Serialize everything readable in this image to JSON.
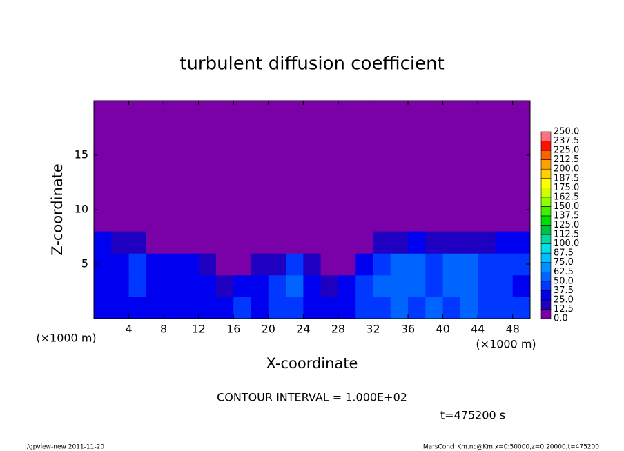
{
  "chart_data": {
    "type": "contour",
    "title": "turbulent diffusion coefficient",
    "xlabel": "X-coordinate",
    "ylabel": "Z-coordinate",
    "unit_label": "(×1000 m)",
    "xlim": [
      0,
      50
    ],
    "ylim": [
      0,
      20
    ],
    "xticks": [
      4,
      8,
      12,
      16,
      20,
      24,
      28,
      32,
      36,
      40,
      44,
      48
    ],
    "yticks": [
      5,
      10,
      15
    ],
    "x": [
      1,
      3,
      5,
      7,
      9,
      11,
      13,
      15,
      17,
      19,
      21,
      23,
      25,
      27,
      29,
      31,
      33,
      35,
      37,
      39,
      41,
      43,
      45,
      47,
      49
    ],
    "z": [
      1,
      3,
      5,
      7
    ],
    "values": [
      [
        35,
        30,
        35,
        30,
        30,
        28,
        30,
        35,
        40,
        35,
        38,
        40,
        35,
        30,
        35,
        40,
        45,
        50,
        45,
        50,
        45,
        50,
        40,
        45,
        40
      ],
      [
        30,
        35,
        40,
        35,
        30,
        35,
        25,
        20,
        25,
        35,
        40,
        50,
        35,
        20,
        25,
        45,
        50,
        55,
        50,
        45,
        50,
        55,
        45,
        40,
        35
      ],
      [
        30,
        35,
        40,
        35,
        35,
        30,
        20,
        10,
        10,
        15,
        20,
        40,
        15,
        10,
        10,
        30,
        45,
        50,
        55,
        45,
        50,
        50,
        40,
        45,
        40
      ],
      [
        25,
        20,
        15,
        10,
        10,
        5,
        0,
        0,
        0,
        0,
        0,
        5,
        0,
        0,
        0,
        0,
        15,
        20,
        25,
        20,
        15,
        20,
        20,
        25,
        25
      ]
    ],
    "levels": [
      {
        "value": 0,
        "label": "0.0"
      },
      {
        "value": 12.5,
        "label": "12.5"
      },
      {
        "value": 25,
        "label": "25.0"
      },
      {
        "value": 37.5,
        "label": "37.5"
      },
      {
        "value": 50,
        "label": "50.0"
      },
      {
        "value": 62.5,
        "label": "62.5"
      },
      {
        "value": 75,
        "label": "75.0"
      },
      {
        "value": 87.5,
        "label": "87.5"
      },
      {
        "value": 100,
        "label": "100.0"
      },
      {
        "value": 112.5,
        "label": "112.5"
      },
      {
        "value": 125,
        "label": "125.0"
      },
      {
        "value": 137.5,
        "label": "137.5"
      },
      {
        "value": 150,
        "label": "150.0"
      },
      {
        "value": 162.5,
        "label": "162.5"
      },
      {
        "value": 175,
        "label": "175.0"
      },
      {
        "value": 187.5,
        "label": "187.5"
      },
      {
        "value": 200,
        "label": "200.0"
      },
      {
        "value": 212.5,
        "label": "212.5"
      },
      {
        "value": 225,
        "label": "225.0"
      },
      {
        "value": 237.5,
        "label": "237.5"
      },
      {
        "value": 250,
        "label": "250.0"
      }
    ],
    "colors": [
      "#7a00a8",
      "#2000c0",
      "#0000f0",
      "#0038ff",
      "#0064ff",
      "#0090ff",
      "#00c0ff",
      "#00e0e8",
      "#00d8a0",
      "#00c040",
      "#00e000",
      "#40f000",
      "#90ff00",
      "#d0ff00",
      "#ffff00",
      "#ffd000",
      "#ffa000",
      "#ff6000",
      "#ff1000",
      "#ff7080"
    ],
    "annotations": {
      "contour_interval": "CONTOUR INTERVAL = 1.000E+02",
      "time": "t=475200 s",
      "footer_left": "./gpview-new   2011-11-20",
      "footer_right": "MarsCond_Km.nc@Km,x=0:50000,z=0:20000,t=475200"
    }
  }
}
